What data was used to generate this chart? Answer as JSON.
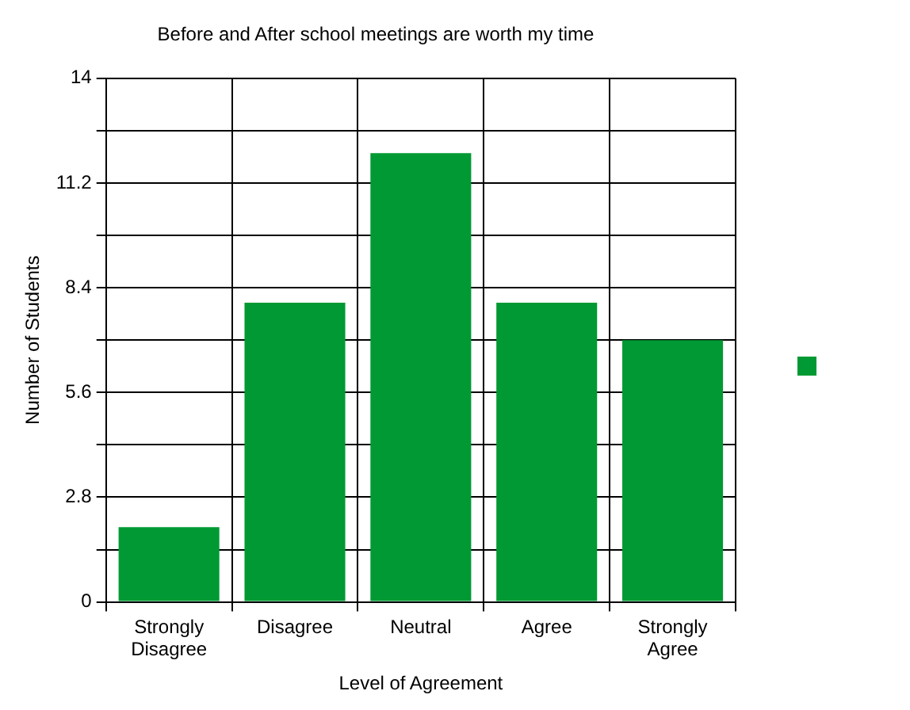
{
  "chart_data": {
    "type": "bar",
    "title": "Before and After school meetings are worth my time",
    "xlabel": "Level of Agreement",
    "ylabel": "Number of Students",
    "categories": [
      "Strongly Disagree",
      "Disagree",
      "Neutral",
      "Agree",
      "Strongly Agree"
    ],
    "series": [
      {
        "color": "#009933",
        "values": [
          2,
          8,
          12,
          8,
          7
        ]
      }
    ],
    "ylim": [
      0,
      14
    ],
    "yticks": [
      0,
      {
        "value": 1.4,
        "label": null
      },
      2.8,
      {
        "value": 4.2,
        "label": null
      },
      5.6,
      {
        "value": 7,
        "label": null
      },
      8.4,
      {
        "value": 9.8,
        "label": null
      },
      11.2,
      {
        "value": 12.6,
        "label": null
      },
      14
    ],
    "grid": true
  }
}
